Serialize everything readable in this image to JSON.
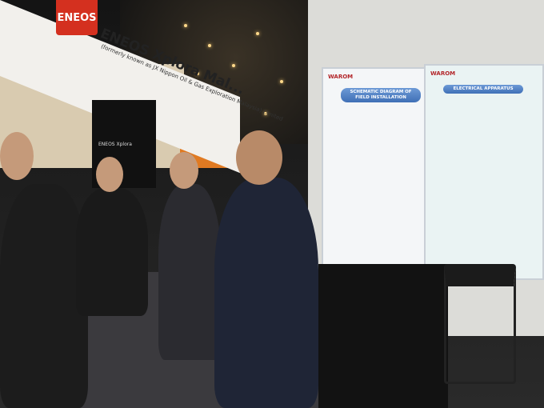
{
  "photo": {
    "booth_left": {
      "logo_text": "ENEOS",
      "banner_title": "ENEOS Xplora Mal...",
      "banner_subtitle": "(formerly known as JX Nippon Oil & Gas Exploration Malaysia) Limited",
      "pillar_text": "ENEOS Xplora"
    },
    "booth_right": {
      "brand": "WAROM",
      "poster_left_title": "SCHEMATIC DIAGRAM OF FIELD INSTALLATION",
      "poster_right_title": "ELECTRICAL APPARATUS"
    },
    "colors": {
      "eneos_red": "#d4301f",
      "warom_blue": "#3f6fb6",
      "booth_orange": "#e07a22"
    }
  }
}
